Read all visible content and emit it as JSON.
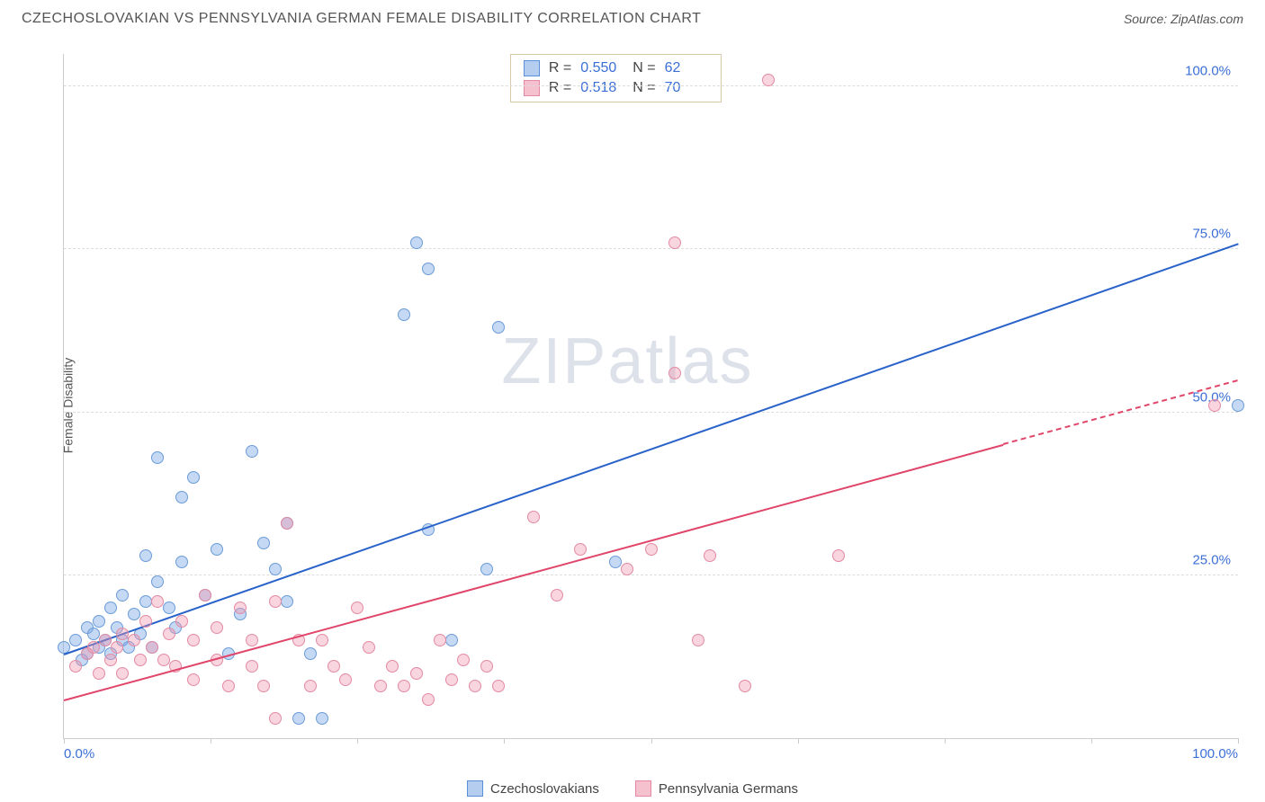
{
  "header": {
    "title": "CZECHOSLOVAKIAN VS PENNSYLVANIA GERMAN FEMALE DISABILITY CORRELATION CHART",
    "source_prefix": "Source: ",
    "source_name": "ZipAtlas.com"
  },
  "chart": {
    "type": "scatter",
    "ylabel": "Female Disability",
    "watermark_a": "ZIP",
    "watermark_b": "atlas",
    "background_color": "#ffffff",
    "grid_color": "#dddddd",
    "axis_color": "#cccccc",
    "label_color": "#3b6fd6",
    "xlim": [
      0,
      100
    ],
    "ylim": [
      0,
      105
    ],
    "xticks": [
      0,
      12.5,
      25,
      37.5,
      50,
      62.5,
      75,
      87.5,
      100
    ],
    "xtick_labels": {
      "0": "0.0%",
      "100": "100.0%"
    },
    "yticks": [
      25,
      50,
      75,
      100
    ],
    "ytick_labels": {
      "25": "25.0%",
      "50": "50.0%",
      "75": "75.0%",
      "100": "100.0%"
    },
    "point_radius": 7,
    "series": [
      {
        "id": "czech",
        "label": "Czechoslovakians",
        "fill": "rgba(128,171,230,0.45)",
        "stroke": "#6a9bd8",
        "swatch_fill": "#b5cef0",
        "swatch_stroke": "#5a8fd8",
        "R": "0.550",
        "N": "62",
        "trend": {
          "color": "#2962c9",
          "x1": 0,
          "y1": 13,
          "x2": 100,
          "y2": 76,
          "dash_from_x": null
        },
        "points": [
          [
            0,
            14
          ],
          [
            1,
            15
          ],
          [
            1.5,
            12
          ],
          [
            2,
            17
          ],
          [
            2,
            13
          ],
          [
            2.5,
            16
          ],
          [
            3,
            14
          ],
          [
            3,
            18
          ],
          [
            3.5,
            15
          ],
          [
            4,
            13
          ],
          [
            4,
            20
          ],
          [
            4.5,
            17
          ],
          [
            5,
            15
          ],
          [
            5,
            22
          ],
          [
            5.5,
            14
          ],
          [
            6,
            19
          ],
          [
            6.5,
            16
          ],
          [
            7,
            21
          ],
          [
            7,
            28
          ],
          [
            7.5,
            14
          ],
          [
            8,
            24
          ],
          [
            8,
            43
          ],
          [
            9,
            20
          ],
          [
            9.5,
            17
          ],
          [
            10,
            27
          ],
          [
            10,
            37
          ],
          [
            11,
            40
          ],
          [
            12,
            22
          ],
          [
            13,
            29
          ],
          [
            14,
            13
          ],
          [
            15,
            19
          ],
          [
            16,
            44
          ],
          [
            17,
            30
          ],
          [
            18,
            26
          ],
          [
            19,
            33
          ],
          [
            19,
            21
          ],
          [
            20,
            3
          ],
          [
            21,
            13
          ],
          [
            22,
            3
          ],
          [
            29,
            65
          ],
          [
            30,
            76
          ],
          [
            31,
            32
          ],
          [
            31,
            72
          ],
          [
            33,
            15
          ],
          [
            36,
            26
          ],
          [
            37,
            63
          ],
          [
            47,
            27
          ],
          [
            100,
            51
          ]
        ]
      },
      {
        "id": "penn",
        "label": "Pennsylvania Germans",
        "fill": "rgba(240,150,175,0.40)",
        "stroke": "#e38aa2",
        "swatch_fill": "#f5c1ce",
        "swatch_stroke": "#e38aa2",
        "R": "0.518",
        "N": "70",
        "trend": {
          "color": "#e0456a",
          "x1": 0,
          "y1": 6,
          "x2": 100,
          "y2": 55,
          "dash_from_x": 80
        },
        "points": [
          [
            1,
            11
          ],
          [
            2,
            13
          ],
          [
            2.5,
            14
          ],
          [
            3,
            10
          ],
          [
            3.5,
            15
          ],
          [
            4,
            12
          ],
          [
            4.5,
            14
          ],
          [
            5,
            16
          ],
          [
            5,
            10
          ],
          [
            6,
            15
          ],
          [
            6.5,
            12
          ],
          [
            7,
            18
          ],
          [
            7.5,
            14
          ],
          [
            8,
            21
          ],
          [
            8.5,
            12
          ],
          [
            9,
            16
          ],
          [
            9.5,
            11
          ],
          [
            10,
            18
          ],
          [
            11,
            15
          ],
          [
            11,
            9
          ],
          [
            12,
            22
          ],
          [
            13,
            12
          ],
          [
            13,
            17
          ],
          [
            14,
            8
          ],
          [
            15,
            20
          ],
          [
            16,
            11
          ],
          [
            16,
            15
          ],
          [
            17,
            8
          ],
          [
            18,
            21
          ],
          [
            18,
            3
          ],
          [
            19,
            33
          ],
          [
            20,
            15
          ],
          [
            21,
            8
          ],
          [
            22,
            15
          ],
          [
            23,
            11
          ],
          [
            24,
            9
          ],
          [
            25,
            20
          ],
          [
            26,
            14
          ],
          [
            27,
            8
          ],
          [
            28,
            11
          ],
          [
            29,
            8
          ],
          [
            30,
            10
          ],
          [
            31,
            6
          ],
          [
            32,
            15
          ],
          [
            33,
            9
          ],
          [
            34,
            12
          ],
          [
            35,
            8
          ],
          [
            36,
            11
          ],
          [
            37,
            8
          ],
          [
            40,
            34
          ],
          [
            42,
            22
          ],
          [
            44,
            29
          ],
          [
            48,
            26
          ],
          [
            50,
            29
          ],
          [
            52,
            56
          ],
          [
            52,
            76
          ],
          [
            54,
            15
          ],
          [
            55,
            28
          ],
          [
            58,
            8
          ],
          [
            60,
            101
          ],
          [
            66,
            28
          ],
          [
            98,
            51
          ]
        ]
      }
    ],
    "stats_legend": {
      "border_color": "#d8c9a8",
      "r_label": "R =",
      "n_label": "N ="
    },
    "bottom_legend": {
      "items": [
        "czech",
        "penn"
      ]
    }
  }
}
